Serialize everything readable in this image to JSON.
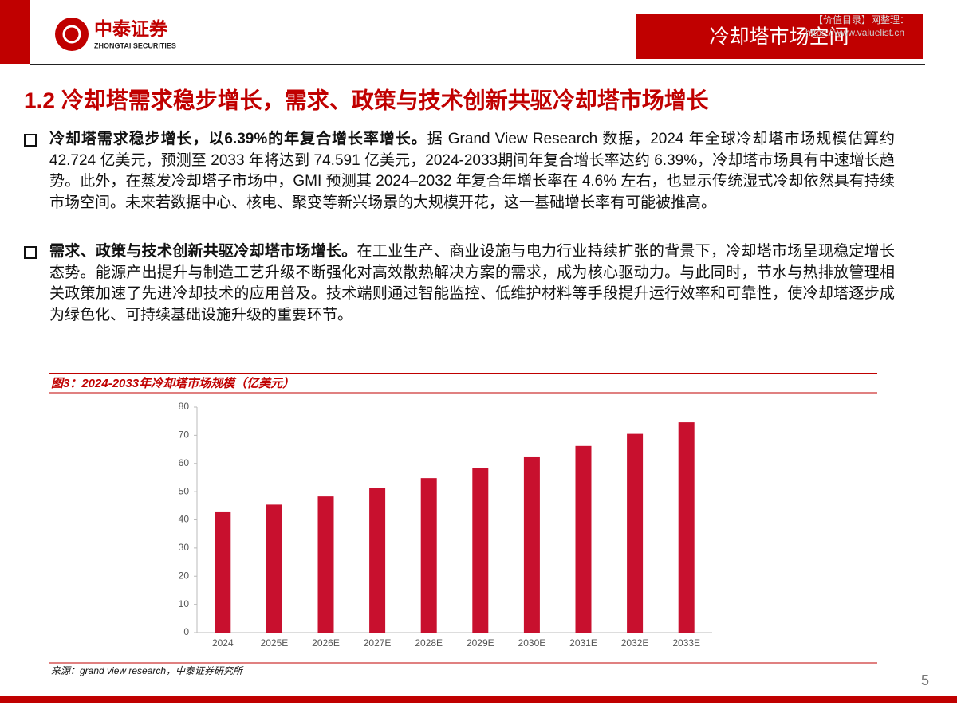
{
  "header": {
    "brand": "中泰证券",
    "brand_en": "ZHONGTAI SECURITIES",
    "section": "冷却塔市场空间",
    "watermark_1": "【价值目录】网整理：",
    "watermark_2": "https://www.valuelist.cn"
  },
  "heading": "1.2 冷却塔需求稳步增长，需求、政策与技术创新共驱冷却塔市场增长",
  "bullets": [
    {
      "lead": "冷却塔需求稳步增长，以6.39%的年复合增长率增长。",
      "text": "据 Grand View Research 数据，2024 年全球冷却塔市场规模估算约 42.724 亿美元，预测至 2033 年将达到 74.591 亿美元，2024-2033期间年复合增长率达约 6.39%，冷却塔市场具有中速增长趋势。此外，在蒸发冷却塔子市场中，GMI 预测其 2024–2032 年复合年增长率在 4.6% 左右，也显示传统湿式冷却依然具有持续市场空间。未来若数据中心、核电、聚变等新兴场景的大规模开花，这一基础增长率有可能被推高。"
    },
    {
      "lead": "需求、政策与技术创新共驱冷却塔市场增长。",
      "text": "在工业生产、商业设施与电力行业持续扩张的背景下，冷却塔市场呈现稳定增长态势。能源产出提升与制造工艺升级不断强化对高效散热解决方案的需求，成为核心驱动力。与此同时，节水与热排放管理相关政策加速了先进冷却技术的应用普及。技术端则通过智能监控、低维护材料等手段提升运行效率和可靠性，使冷却塔逐步成为绿色化、可持续基础设施升级的重要环节。"
    }
  ],
  "chart_data": {
    "type": "bar",
    "title": "图3：2024-2033年冷却塔市场规模（亿美元）",
    "categories": [
      "2024",
      "2025E",
      "2026E",
      "2027E",
      "2028E",
      "2029E",
      "2030E",
      "2031E",
      "2032E",
      "2033E"
    ],
    "values": [
      42.7,
      45.4,
      48.3,
      51.4,
      54.8,
      58.4,
      62.2,
      66.2,
      70.5,
      74.6
    ],
    "color": "#c8102e",
    "ylim": [
      0,
      80
    ],
    "yticks": [
      0,
      10,
      20,
      30,
      40,
      50,
      60,
      70,
      80
    ],
    "grid": false
  },
  "source": "来源：grand view research，中泰证券研究所",
  "page_number": "5"
}
